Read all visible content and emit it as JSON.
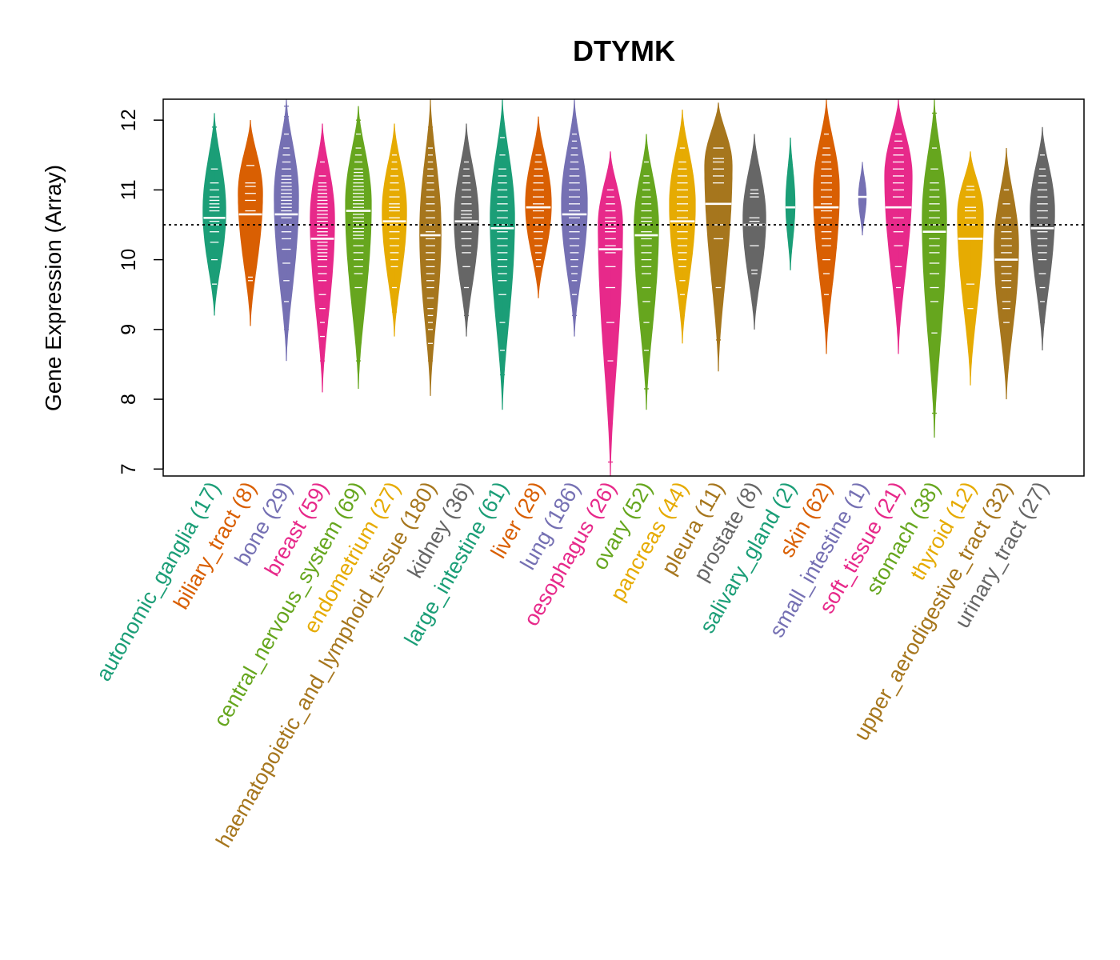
{
  "chart_data": {
    "type": "beanplot",
    "title": "DTYMK",
    "xlabel": "",
    "ylabel": "Gene Expression (Array)",
    "ylim": [
      6.9,
      12.3
    ],
    "yticks": [
      7,
      8,
      9,
      10,
      11,
      12
    ],
    "reference_line": 10.5,
    "categories": [
      {
        "label": "autonomic_ganglia (17)",
        "color": "#1B9E77",
        "median": 10.6,
        "min": 9.2,
        "max": 12.1,
        "mode": 10.7,
        "width": 0.75,
        "points": [
          9.65,
          10.0,
          10.25,
          10.4,
          10.5,
          10.55,
          10.6,
          10.7,
          10.75,
          10.8,
          10.85,
          10.9,
          11.0,
          11.1,
          11.3,
          11.7,
          11.9
        ]
      },
      {
        "label": "biliary_tract (8)",
        "color": "#D95F02",
        "median": 10.65,
        "min": 9.05,
        "max": 12.0,
        "mode": 10.95,
        "width": 0.8,
        "points": [
          9.7,
          9.75,
          10.7,
          10.85,
          10.95,
          11.05,
          11.1,
          11.35
        ]
      },
      {
        "label": "bone (29)",
        "color": "#7570B3",
        "median": 10.65,
        "min": 8.55,
        "max": 12.3,
        "mode": 10.9,
        "width": 0.8,
        "points": [
          9.0,
          9.4,
          9.7,
          9.95,
          10.15,
          10.3,
          10.4,
          10.5,
          10.6,
          10.65,
          10.7,
          10.75,
          10.8,
          10.85,
          10.9,
          10.95,
          11.0,
          11.05,
          11.1,
          11.15,
          11.2,
          11.3,
          11.4,
          11.5,
          11.6,
          11.8,
          11.9,
          12.05,
          12.2
        ]
      },
      {
        "label": "breast (59)",
        "color": "#E7298A",
        "median": 10.3,
        "min": 8.1,
        "max": 11.95,
        "mode": 10.6,
        "width": 0.8,
        "points": [
          8.55,
          8.7,
          8.9,
          9.1,
          9.3,
          9.5,
          9.7,
          9.8,
          9.9,
          10.0,
          10.05,
          10.1,
          10.15,
          10.2,
          10.25,
          10.3,
          10.35,
          10.4,
          10.45,
          10.5,
          10.55,
          10.6,
          10.65,
          10.7,
          10.75,
          10.8,
          10.85,
          10.9,
          10.95,
          11.0,
          11.05,
          11.1,
          11.2,
          11.4,
          11.6
        ]
      },
      {
        "label": "central_nervous_system (69)",
        "color": "#66A61E",
        "median": 10.7,
        "min": 8.15,
        "max": 12.2,
        "mode": 10.8,
        "width": 0.85,
        "points": [
          8.55,
          9.6,
          9.8,
          9.9,
          10.0,
          10.1,
          10.2,
          10.3,
          10.35,
          10.4,
          10.45,
          10.5,
          10.55,
          10.6,
          10.65,
          10.7,
          10.75,
          10.8,
          10.85,
          10.9,
          10.95,
          11.0,
          11.05,
          11.1,
          11.15,
          11.2,
          11.25,
          11.3,
          11.4,
          11.5,
          11.6,
          11.8,
          12.0
        ]
      },
      {
        "label": "endometrium (27)",
        "color": "#E6AB02",
        "median": 10.55,
        "min": 8.9,
        "max": 11.95,
        "mode": 10.7,
        "width": 0.8,
        "points": [
          9.25,
          9.6,
          9.9,
          10.0,
          10.1,
          10.2,
          10.3,
          10.4,
          10.5,
          10.55,
          10.6,
          10.7,
          10.75,
          10.8,
          10.9,
          11.0,
          11.1,
          11.2,
          11.3,
          11.4,
          11.5
        ]
      },
      {
        "label": "haematopoietic_and_lymphoid_tissue (180)",
        "color": "#A6761D",
        "median": 10.35,
        "min": 8.05,
        "max": 12.3,
        "mode": 10.4,
        "width": 0.7,
        "points": [
          8.55,
          8.8,
          9.0,
          9.1,
          9.2,
          9.3,
          9.45,
          9.6,
          9.7,
          9.8,
          9.9,
          10.0,
          10.1,
          10.2,
          10.3,
          10.4,
          10.5,
          10.6,
          10.7,
          10.8,
          10.9,
          11.0,
          11.1,
          11.2,
          11.3,
          11.4,
          11.5,
          11.6,
          11.9
        ]
      },
      {
        "label": "kidney (36)",
        "color": "#666666",
        "median": 10.55,
        "min": 8.9,
        "max": 11.95,
        "mode": 10.6,
        "width": 0.8,
        "points": [
          9.2,
          9.6,
          9.9,
          10.1,
          10.2,
          10.3,
          10.4,
          10.5,
          10.55,
          10.6,
          10.65,
          10.7,
          10.8,
          10.9,
          11.0,
          11.1,
          11.2,
          11.3,
          11.4,
          11.6
        ]
      },
      {
        "label": "large_intestine (61)",
        "color": "#1B9E77",
        "median": 10.45,
        "min": 7.85,
        "max": 12.3,
        "mode": 10.6,
        "width": 0.8,
        "points": [
          8.35,
          8.7,
          9.1,
          9.5,
          9.7,
          9.8,
          9.9,
          10.0,
          10.1,
          10.2,
          10.3,
          10.4,
          10.5,
          10.6,
          10.7,
          10.8,
          10.9,
          11.0,
          11.1,
          11.2,
          11.3,
          11.5,
          11.75
        ]
      },
      {
        "label": "liver (28)",
        "color": "#D95F02",
        "median": 10.75,
        "min": 9.45,
        "max": 12.05,
        "mode": 10.8,
        "width": 0.85,
        "points": [
          9.9,
          10.0,
          10.1,
          10.2,
          10.3,
          10.4,
          10.5,
          10.6,
          10.7,
          10.75,
          10.8,
          10.9,
          11.0,
          11.1,
          11.2,
          11.3,
          11.4,
          11.5
        ]
      },
      {
        "label": "lung (186)",
        "color": "#7570B3",
        "median": 10.65,
        "min": 8.9,
        "max": 12.3,
        "mode": 10.8,
        "width": 0.85,
        "points": [
          9.2,
          9.3,
          9.5,
          9.7,
          9.8,
          9.9,
          10.0,
          10.1,
          10.2,
          10.3,
          10.4,
          10.5,
          10.6,
          10.7,
          10.8,
          10.9,
          11.0,
          11.1,
          11.2,
          11.3,
          11.4,
          11.5,
          11.6,
          11.7,
          11.8,
          11.9,
          12.0
        ]
      },
      {
        "label": "oesophagus (26)",
        "color": "#E7298A",
        "median": 10.15,
        "min": 6.9,
        "max": 11.55,
        "mode": 10.5,
        "width": 0.8,
        "points": [
          7.1,
          8.55,
          9.1,
          9.6,
          9.9,
          10.1,
          10.2,
          10.3,
          10.4,
          10.45,
          10.5,
          10.55,
          10.6,
          10.7,
          10.8,
          10.9,
          11.0
        ]
      },
      {
        "label": "ovary (52)",
        "color": "#66A61E",
        "median": 10.35,
        "min": 7.85,
        "max": 11.8,
        "mode": 10.5,
        "width": 0.8,
        "points": [
          8.15,
          8.7,
          9.1,
          9.4,
          9.6,
          9.8,
          9.9,
          10.0,
          10.1,
          10.2,
          10.3,
          10.4,
          10.5,
          10.55,
          10.6,
          10.7,
          10.8,
          10.9,
          11.0,
          11.1,
          11.2,
          11.4
        ]
      },
      {
        "label": "pancreas (44)",
        "color": "#E6AB02",
        "median": 10.55,
        "min": 8.8,
        "max": 12.15,
        "mode": 10.8,
        "width": 0.85,
        "points": [
          9.2,
          9.5,
          9.7,
          9.9,
          10.0,
          10.1,
          10.2,
          10.3,
          10.4,
          10.5,
          10.6,
          10.7,
          10.8,
          10.9,
          11.0,
          11.1,
          11.2,
          11.3,
          11.4,
          11.6
        ]
      },
      {
        "label": "pleura (11)",
        "color": "#A6761D",
        "median": 10.8,
        "min": 8.4,
        "max": 12.25,
        "mode": 11.35,
        "width": 0.9,
        "points": [
          8.85,
          9.6,
          10.3,
          10.5,
          10.8,
          11.1,
          11.2,
          11.3,
          11.4,
          11.45,
          11.6
        ]
      },
      {
        "label": "prostate (8)",
        "color": "#666666",
        "median": 10.5,
        "min": 9.0,
        "max": 11.8,
        "mode": 10.6,
        "width": 0.75,
        "points": [
          9.8,
          9.85,
          10.2,
          10.55,
          10.6,
          10.9,
          10.95,
          11.0
        ]
      },
      {
        "label": "salivary_gland (2)",
        "color": "#1B9E77",
        "median": 10.75,
        "min": 9.85,
        "max": 11.75,
        "mode": 10.8,
        "width": 0.3,
        "points": [
          10.35,
          11.2
        ]
      },
      {
        "label": "skin (62)",
        "color": "#D95F02",
        "median": 10.75,
        "min": 8.65,
        "max": 12.3,
        "mode": 11.0,
        "width": 0.85,
        "points": [
          9.2,
          9.5,
          9.8,
          10.0,
          10.2,
          10.3,
          10.4,
          10.5,
          10.6,
          10.7,
          10.8,
          10.9,
          11.0,
          11.1,
          11.2,
          11.3,
          11.4,
          11.5,
          11.6,
          11.8
        ]
      },
      {
        "label": "small_intestine (1)",
        "color": "#7570B3",
        "median": 10.9,
        "min": 10.35,
        "max": 11.4,
        "mode": 10.9,
        "width": 0.25,
        "points": [
          10.9
        ]
      },
      {
        "label": "soft_tissue (21)",
        "color": "#E7298A",
        "median": 10.75,
        "min": 8.65,
        "max": 12.3,
        "mode": 11.2,
        "width": 0.9,
        "points": [
          9.2,
          9.6,
          9.9,
          10.2,
          10.4,
          10.6,
          10.75,
          10.9,
          11.0,
          11.1,
          11.2,
          11.3,
          11.4,
          11.5,
          11.6,
          11.7,
          11.8,
          12.05
        ]
      },
      {
        "label": "stomach (38)",
        "color": "#66A61E",
        "median": 10.4,
        "min": 7.45,
        "max": 12.3,
        "mode": 10.6,
        "width": 0.8,
        "points": [
          7.8,
          8.95,
          9.4,
          9.6,
          9.8,
          9.95,
          10.1,
          10.2,
          10.3,
          10.4,
          10.5,
          10.6,
          10.7,
          10.8,
          10.9,
          11.0,
          11.1,
          11.3,
          11.6,
          12.1
        ]
      },
      {
        "label": "thyroid (12)",
        "color": "#E6AB02",
        "median": 10.3,
        "min": 8.2,
        "max": 11.55,
        "mode": 10.65,
        "width": 0.85,
        "points": [
          8.7,
          9.3,
          9.65,
          10.3,
          10.5,
          10.6,
          10.7,
          10.75,
          10.9,
          11.0,
          11.05
        ]
      },
      {
        "label": "upper_aerodigestive_tract (32)",
        "color": "#A6761D",
        "median": 10.0,
        "min": 8.0,
        "max": 11.6,
        "mode": 10.2,
        "width": 0.8,
        "points": [
          8.5,
          9.1,
          9.3,
          9.4,
          9.6,
          9.7,
          9.8,
          9.9,
          10.0,
          10.1,
          10.2,
          10.3,
          10.4,
          10.5,
          10.6,
          10.8,
          11.0,
          11.2
        ]
      },
      {
        "label": "urinary_tract (27)",
        "color": "#666666",
        "median": 10.45,
        "min": 8.7,
        "max": 11.9,
        "mode": 10.7,
        "width": 0.8,
        "points": [
          9.1,
          9.4,
          9.6,
          9.8,
          10.0,
          10.1,
          10.2,
          10.3,
          10.4,
          10.5,
          10.6,
          10.7,
          10.8,
          10.9,
          11.0,
          11.1,
          11.2,
          11.3,
          11.5
        ]
      }
    ]
  }
}
